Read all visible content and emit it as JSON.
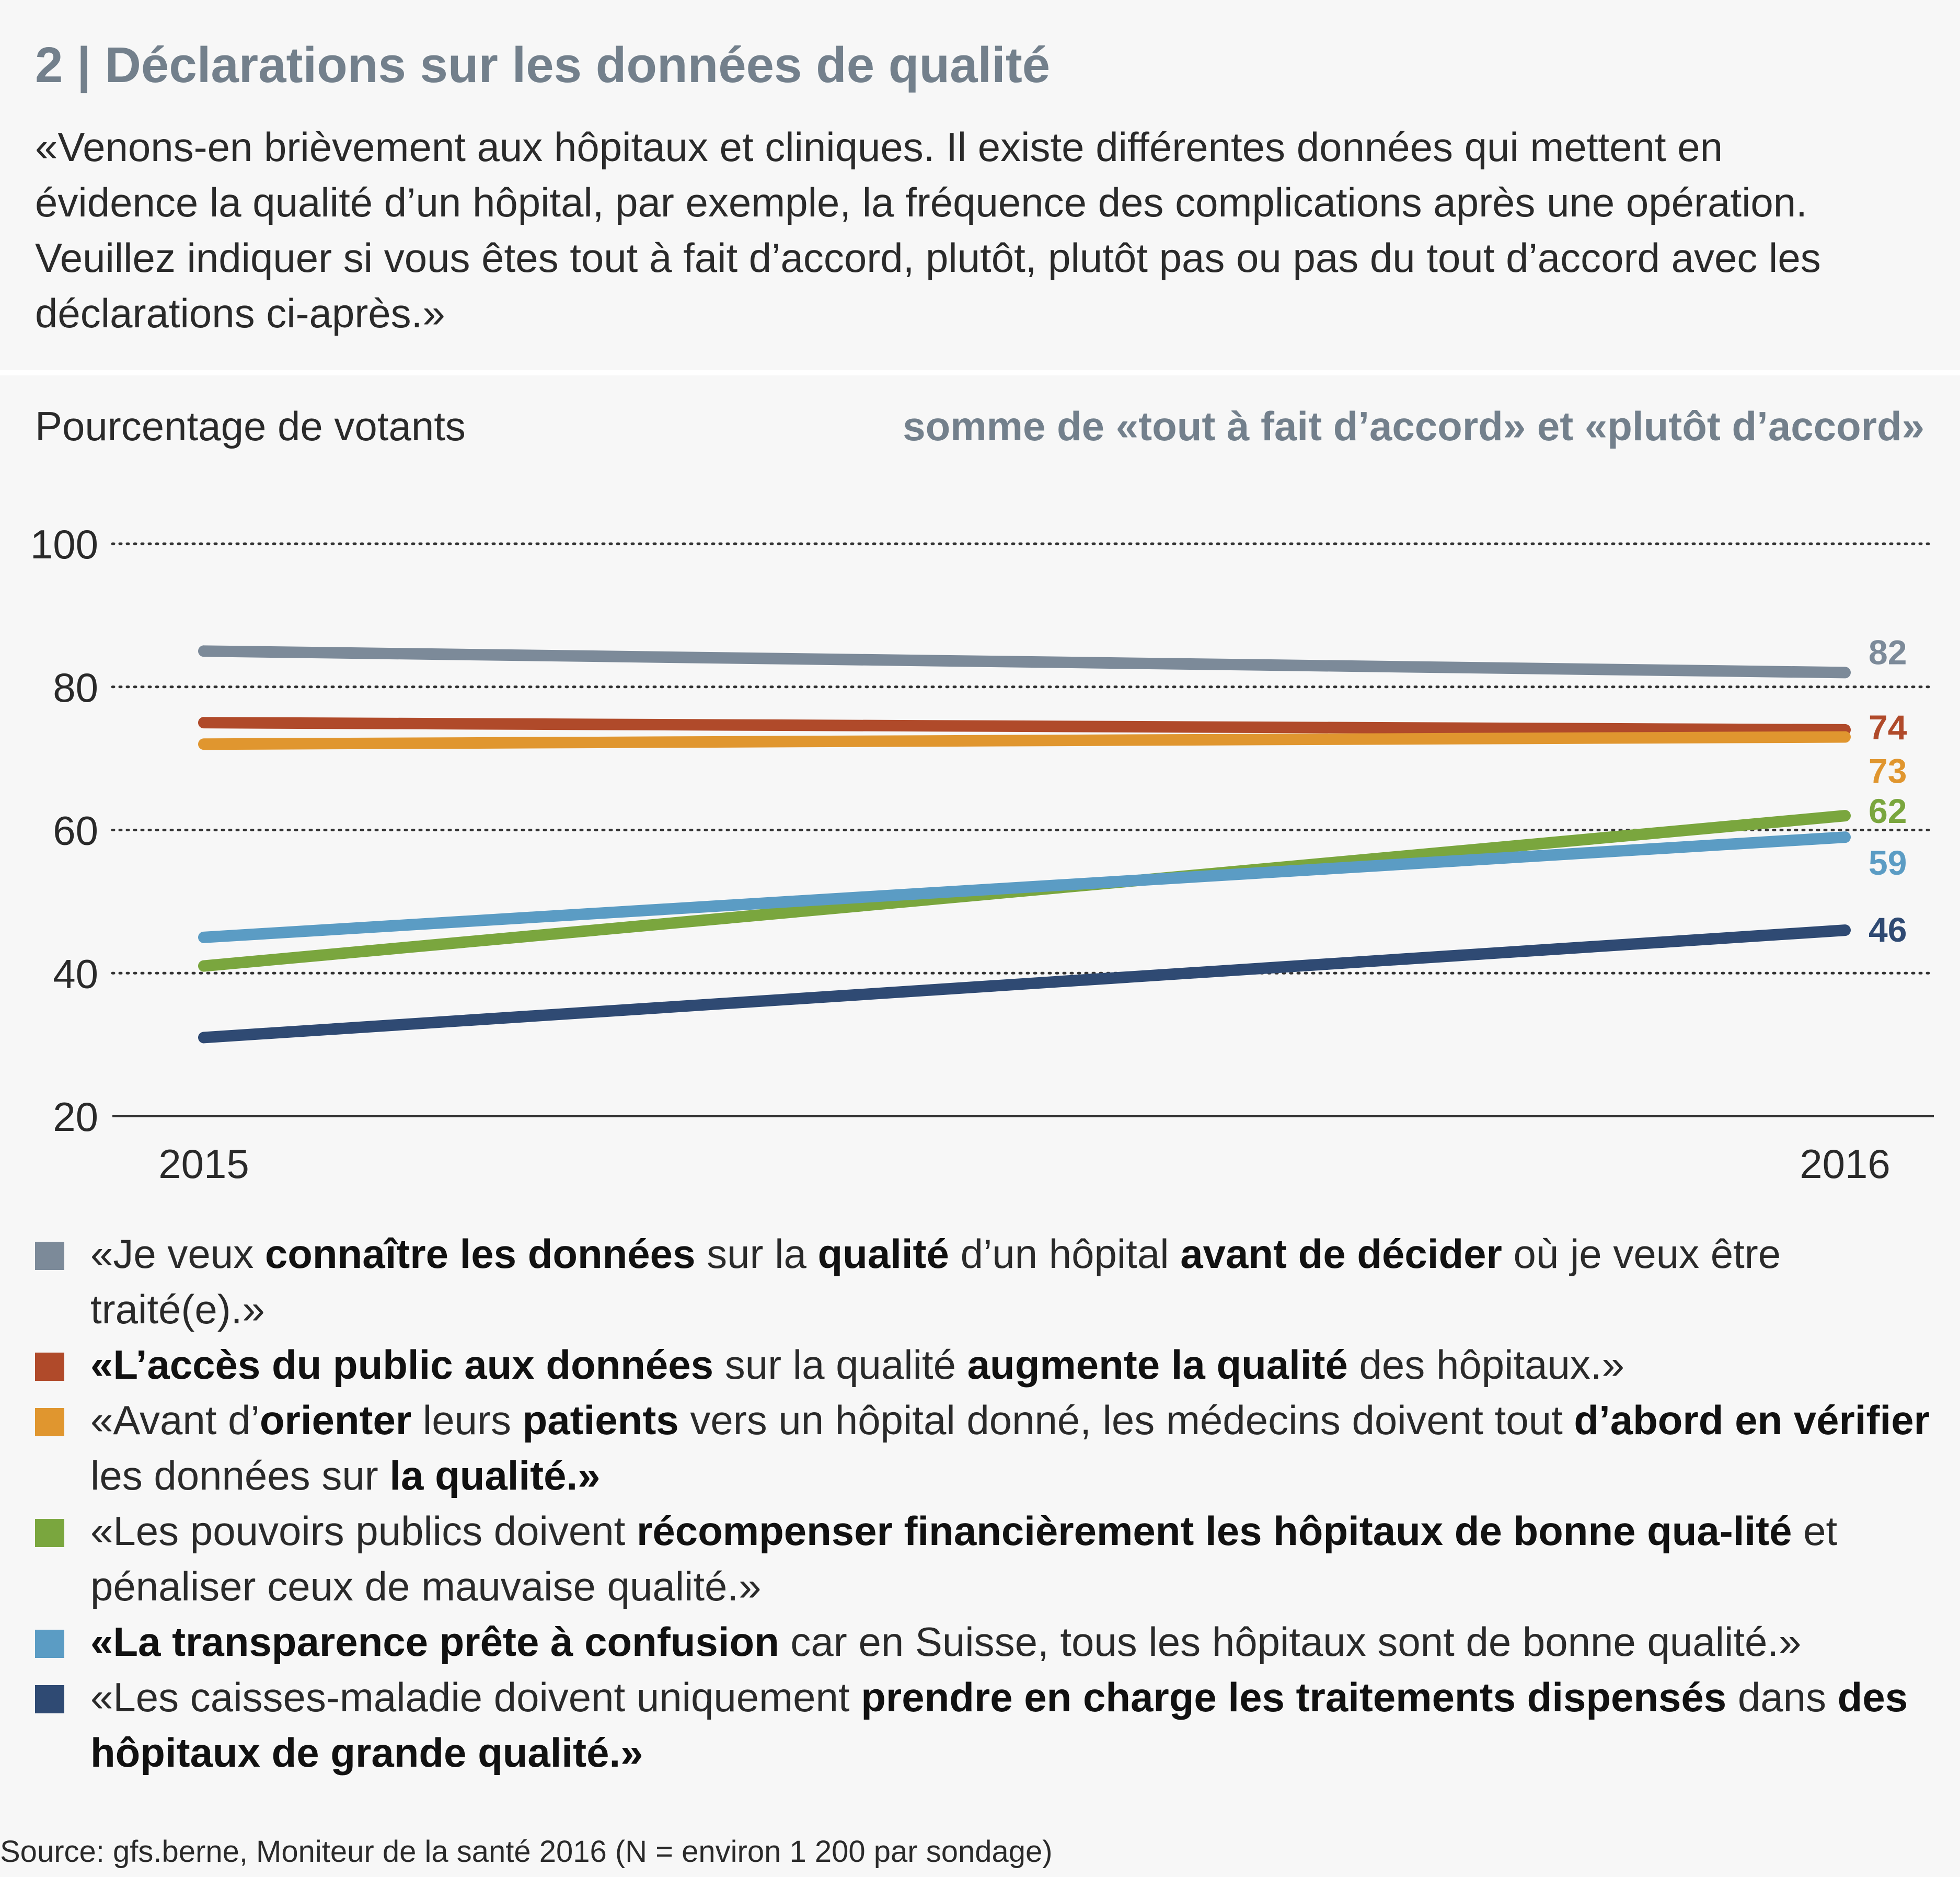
{
  "title": "2 | Déclarations sur les données de qualité",
  "intro": "«Venons-en brièvement aux hôpitaux et cliniques. Il existe différentes données qui mettent en évidence la qualité d’un hôpital, par exemple, la fréquence des complications après une opération. Veuillez indiquer si vous êtes tout à fait d’accord, plutôt, plutôt pas ou pas du tout d’accord avec les déclarations ci-après.»",
  "y_caption": "Pourcentage de votants",
  "subtitle": "somme de «tout à fait d’accord» et «plutôt d’accord»",
  "chart_data": {
    "type": "line",
    "x": [
      "2015",
      "2016"
    ],
    "ylim": [
      20,
      100
    ],
    "yticks": [
      100,
      80,
      60,
      40,
      20
    ],
    "grid": "dotted horizontal",
    "series": [
      {
        "color": "#7c8a99",
        "values": [
          85,
          82
        ],
        "end_label": "82"
      },
      {
        "color": "#b04a2a",
        "values": [
          75,
          74
        ],
        "end_label": "74"
      },
      {
        "color": "#e0962f",
        "values": [
          72,
          73
        ],
        "end_label": "73"
      },
      {
        "color": "#7aa63e",
        "values": [
          41,
          62
        ],
        "end_label": "62"
      },
      {
        "color": "#5b9cc4",
        "values": [
          45,
          59
        ],
        "end_label": "59"
      },
      {
        "color": "#2f4a73",
        "values": [
          31,
          46
        ],
        "end_label": "46"
      }
    ]
  },
  "legend": [
    {
      "color": "#7c8a99",
      "parts": [
        [
          "«Je veux ",
          false
        ],
        [
          "connaître les données",
          true
        ],
        [
          " sur la ",
          false
        ],
        [
          "qualité",
          true
        ],
        [
          " d’un hôpital ",
          false
        ],
        [
          "avant de décider",
          true
        ],
        [
          " où je veux être traité(e).»",
          false
        ]
      ]
    },
    {
      "color": "#b04a2a",
      "parts": [
        [
          "«L’accès du public aux données",
          true
        ],
        [
          " sur la qualité ",
          false
        ],
        [
          "augmente la qualité",
          true
        ],
        [
          " des hôpitaux.»",
          false
        ]
      ]
    },
    {
      "color": "#e0962f",
      "parts": [
        [
          "«Avant d’",
          false
        ],
        [
          "orienter",
          true
        ],
        [
          " leurs ",
          false
        ],
        [
          "patients",
          true
        ],
        [
          " vers un hôpital donné, les médecins doivent tout ",
          false
        ],
        [
          "d’abord en vérifier",
          true
        ],
        [
          " les données sur ",
          false
        ],
        [
          "la qualité.»",
          true
        ]
      ]
    },
    {
      "color": "#7aa63e",
      "parts": [
        [
          "«Les pouvoirs publics doivent ",
          false
        ],
        [
          "récompenser financièrement les hôpitaux de bonne qua-lité",
          true
        ],
        [
          " et pénaliser ceux de mauvaise qualité.»",
          false
        ]
      ]
    },
    {
      "color": "#5b9cc4",
      "parts": [
        [
          "«La transparence prête à confusion",
          true
        ],
        [
          " car en Suisse, tous les hôpitaux sont de bonne qualité.»",
          false
        ]
      ]
    },
    {
      "color": "#2f4a73",
      "parts": [
        [
          "«Les caisses-maladie doivent uniquement ",
          false
        ],
        [
          "prendre en charge les traitements dispensés",
          true
        ],
        [
          " dans ",
          false
        ],
        [
          "des hôpitaux de grande qualité.»",
          true
        ]
      ]
    }
  ],
  "source": "Source: gfs.berne, Moniteur de la santé 2016 (N = environ 1 200 par sondage)"
}
